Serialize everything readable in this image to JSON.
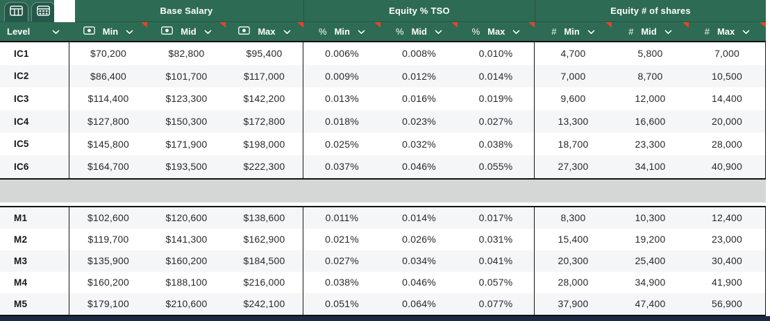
{
  "toolbar": {
    "tabs": [
      {
        "id": "grid-view-tab",
        "icon": "table-grid-icon"
      },
      {
        "id": "calc-view-tab",
        "icon": "table-calc-icon"
      }
    ]
  },
  "table": {
    "level_header": "Level",
    "groups": [
      {
        "title": "Base Salary",
        "icon": "banknote-icon",
        "columns": [
          "Min",
          "Mid",
          "Max"
        ]
      },
      {
        "title": "Equity % TSO",
        "icon": "percent-icon",
        "columns": [
          "Min",
          "Mid",
          "Max"
        ]
      },
      {
        "title": "Equity # of shares",
        "icon": "hash-icon",
        "columns": [
          "Min",
          "Mid",
          "Max"
        ]
      }
    ],
    "icon_glyphs": {
      "percent-icon": "%",
      "hash-icon": "#"
    },
    "sections": [
      {
        "id": "ic",
        "rows": [
          {
            "level": "IC1",
            "values": [
              "$70,200",
              "$82,800",
              "$95,400",
              "0.006%",
              "0.008%",
              "0.010%",
              "4,700",
              "5,800",
              "7,000"
            ]
          },
          {
            "level": "IC2",
            "values": [
              "$86,400",
              "$101,700",
              "$117,000",
              "0.009%",
              "0.012%",
              "0.014%",
              "7,000",
              "8,700",
              "10,500"
            ]
          },
          {
            "level": "IC3",
            "values": [
              "$114,400",
              "$123,300",
              "$142,200",
              "0.013%",
              "0.016%",
              "0.019%",
              "9,600",
              "12,000",
              "14,400"
            ]
          },
          {
            "level": "IC4",
            "values": [
              "$127,800",
              "$150,300",
              "$172,800",
              "0.018%",
              "0.023%",
              "0.027%",
              "13,300",
              "16,600",
              "20,000"
            ]
          },
          {
            "level": "IC5",
            "values": [
              "$145,800",
              "$171,900",
              "$198,000",
              "0.025%",
              "0.032%",
              "0.038%",
              "18,700",
              "23,300",
              "28,000"
            ]
          },
          {
            "level": "IC6",
            "values": [
              "$164,700",
              "$193,500",
              "$222,300",
              "0.037%",
              "0.046%",
              "0.055%",
              "27,300",
              "34,100",
              "40,900"
            ]
          }
        ]
      },
      {
        "id": "m",
        "rows": [
          {
            "level": "M1",
            "values": [
              "$102,600",
              "$120,600",
              "$138,600",
              "0.011%",
              "0.014%",
              "0.017%",
              "8,300",
              "10,300",
              "12,400"
            ]
          },
          {
            "level": "M2",
            "values": [
              "$119,700",
              "$141,300",
              "$162,900",
              "0.021%",
              "0.026%",
              "0.031%",
              "15,400",
              "19,200",
              "23,000"
            ]
          },
          {
            "level": "M3",
            "values": [
              "$135,900",
              "$160,200",
              "$184,500",
              "0.027%",
              "0.034%",
              "0.041%",
              "20,300",
              "25,400",
              "30,400"
            ]
          },
          {
            "level": "M4",
            "values": [
              "$160,200",
              "$188,100",
              "$216,000",
              "0.038%",
              "0.046%",
              "0.057%",
              "28,000",
              "34,900",
              "41,900"
            ]
          },
          {
            "level": "M5",
            "values": [
              "$179,100",
              "$210,600",
              "$242,100",
              "0.051%",
              "0.064%",
              "0.077%",
              "37,900",
              "47,400",
              "56,900"
            ]
          }
        ]
      }
    ]
  },
  "colors": {
    "header_green": "#2E6B54",
    "tab_green": "#24584A",
    "comment_marker_red": "#E2472C",
    "divider_gray": "#D5D6D6",
    "zebra_row": "#F5F6F8",
    "bottom_bar_navy": "#1B2A45",
    "grid_border": "#141414"
  }
}
